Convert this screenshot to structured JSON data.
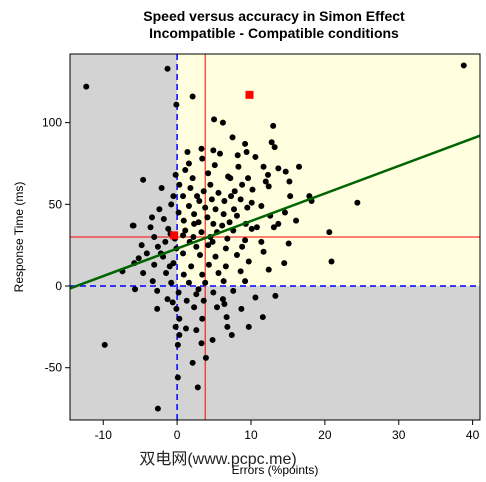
{
  "chart_data": {
    "type": "scatter",
    "title": "Speed versus accuracy in Simon Effect",
    "subtitle": "Incompatible - Compatible conditions",
    "xlabel": "Errors (%points)",
    "ylabel": "Response Time (ms)",
    "xlim": [
      -14.5,
      41
    ],
    "ylim": [
      -82,
      142
    ],
    "x_ticks": [
      -10,
      0,
      10,
      20,
      30,
      40
    ],
    "y_ticks": [
      -50,
      0,
      50,
      100
    ],
    "grid": false,
    "legend": "none",
    "regions": [
      {
        "x": [
          0,
          41
        ],
        "y": [
          0,
          142
        ],
        "fill": "#ffffe0"
      },
      {
        "x": [
          -14.5,
          0
        ],
        "y": [
          -82,
          142
        ],
        "fill": "#d3d3d3"
      },
      {
        "x": [
          0,
          41
        ],
        "y": [
          -82,
          0
        ],
        "fill": "#d3d3d3"
      }
    ],
    "reference_lines": [
      {
        "orientation": "vertical",
        "value": 0,
        "color": "#0000ff",
        "style": "dashed"
      },
      {
        "orientation": "horizontal",
        "value": 0,
        "color": "#0000ff",
        "style": "dashed"
      },
      {
        "orientation": "vertical",
        "value": 3.8,
        "color": "#ff0000",
        "style": "solid"
      },
      {
        "orientation": "horizontal",
        "value": 30,
        "color": "#ff0000",
        "style": "solid"
      }
    ],
    "regression_line": {
      "x": [
        -14.5,
        41
      ],
      "y": [
        -1.5,
        92
      ],
      "color": "#006400"
    },
    "highlight_points": [
      {
        "x": 9.8,
        "y": 117,
        "color": "#ff0000"
      },
      {
        "x": -0.4,
        "y": 31,
        "color": "#ff0000"
      }
    ],
    "points": [
      [
        -12.3,
        122
      ],
      [
        -1.3,
        133
      ],
      [
        38.8,
        135
      ],
      [
        -0.1,
        111
      ],
      [
        2.1,
        116
      ],
      [
        5,
        102
      ],
      [
        6.2,
        100
      ],
      [
        13,
        98
      ],
      [
        7.5,
        91
      ],
      [
        12.8,
        88
      ],
      [
        9.2,
        87
      ],
      [
        13.2,
        85
      ],
      [
        3.3,
        84
      ],
      [
        4.9,
        83
      ],
      [
        5.8,
        81
      ],
      [
        8.2,
        80
      ],
      [
        9.4,
        82
      ],
      [
        10.6,
        79
      ],
      [
        3.4,
        78
      ],
      [
        1.6,
        75
      ],
      [
        5.1,
        74
      ],
      [
        8.3,
        73
      ],
      [
        11.7,
        73
      ],
      [
        13.7,
        72
      ],
      [
        1.1,
        71
      ],
      [
        -4.6,
        65
      ],
      [
        2.1,
        66
      ],
      [
        7.2,
        66
      ],
      [
        9.6,
        66
      ],
      [
        12.3,
        68
      ],
      [
        14.7,
        70
      ],
      [
        16.5,
        73
      ],
      [
        0.3,
        62
      ],
      [
        1.8,
        60
      ],
      [
        3.6,
        58
      ],
      [
        5.6,
        57
      ],
      [
        7.8,
        58
      ],
      [
        10.2,
        59
      ],
      [
        12.4,
        61
      ],
      [
        -0.5,
        55
      ],
      [
        2.7,
        55
      ],
      [
        4.7,
        53
      ],
      [
        6.4,
        52
      ],
      [
        8.6,
        53
      ],
      [
        15.3,
        55
      ],
      [
        17.9,
        55
      ],
      [
        -0.8,
        50
      ],
      [
        1.6,
        49
      ],
      [
        3.8,
        48
      ],
      [
        5.2,
        47
      ],
      [
        7.7,
        47
      ],
      [
        9.5,
        48
      ],
      [
        11.4,
        49
      ],
      [
        24.4,
        51
      ],
      [
        -2.4,
        47
      ],
      [
        0.2,
        45
      ],
      [
        2.3,
        44
      ],
      [
        4.1,
        42
      ],
      [
        6.3,
        44
      ],
      [
        8.1,
        43
      ],
      [
        12.6,
        43
      ],
      [
        14.6,
        45
      ],
      [
        -1.8,
        41
      ],
      [
        0.9,
        40
      ],
      [
        2.9,
        39
      ],
      [
        4.9,
        38
      ],
      [
        7.1,
        39
      ],
      [
        9.3,
        38
      ],
      [
        16.1,
        40
      ],
      [
        -5.9,
        37
      ],
      [
        -3.6,
        36
      ],
      [
        -1.2,
        35
      ],
      [
        1.1,
        34
      ],
      [
        3.3,
        33
      ],
      [
        5.4,
        33
      ],
      [
        7.6,
        34
      ],
      [
        10.1,
        35
      ],
      [
        13.1,
        36
      ],
      [
        -3.1,
        30
      ],
      [
        -0.3,
        29
      ],
      [
        2.2,
        30
      ],
      [
        4.5,
        30
      ],
      [
        6.8,
        29
      ],
      [
        9.2,
        28
      ],
      [
        11.4,
        27
      ],
      [
        20.6,
        33
      ],
      [
        -2.6,
        24
      ],
      [
        -0.1,
        23
      ],
      [
        2.6,
        24
      ],
      [
        4.2,
        25
      ],
      [
        6.6,
        23
      ],
      [
        8.8,
        24
      ],
      [
        15.1,
        26
      ],
      [
        -4.1,
        20
      ],
      [
        -1.9,
        18
      ],
      [
        0.8,
        20
      ],
      [
        3.1,
        19
      ],
      [
        5.2,
        18
      ],
      [
        8.1,
        19
      ],
      [
        11.7,
        21
      ],
      [
        -5.8,
        14
      ],
      [
        -3.1,
        13
      ],
      [
        -0.5,
        14
      ],
      [
        1.9,
        12
      ],
      [
        4.3,
        13
      ],
      [
        6.6,
        12
      ],
      [
        9.7,
        15
      ],
      [
        14.5,
        14
      ],
      [
        20.9,
        15
      ],
      [
        -7.4,
        9
      ],
      [
        -4.6,
        8
      ],
      [
        -1.5,
        8
      ],
      [
        0.9,
        7
      ],
      [
        3.4,
        7
      ],
      [
        5.6,
        8
      ],
      [
        8.6,
        9
      ],
      [
        12.4,
        10
      ],
      [
        -3.3,
        3
      ],
      [
        -0.8,
        2
      ],
      [
        1.6,
        2
      ],
      [
        3.8,
        2
      ],
      [
        6.3,
        3
      ],
      [
        9.2,
        3
      ],
      [
        -5.7,
        -2
      ],
      [
        -2.7,
        -3
      ],
      [
        0.2,
        -4
      ],
      [
        2.6,
        -5
      ],
      [
        4.9,
        -4
      ],
      [
        7.6,
        -3
      ],
      [
        -1.3,
        -8
      ],
      [
        1.3,
        -9
      ],
      [
        3.6,
        -9
      ],
      [
        6.2,
        -8
      ],
      [
        10.6,
        -7
      ],
      [
        13.3,
        -6
      ],
      [
        -2.7,
        -14
      ],
      [
        -0.1,
        -14
      ],
      [
        2.3,
        -13
      ],
      [
        5.4,
        -13
      ],
      [
        8.7,
        -14
      ],
      [
        0.3,
        -20
      ],
      [
        3.4,
        -20
      ],
      [
        6.7,
        -19
      ],
      [
        11.6,
        -19
      ],
      [
        -0.2,
        -25
      ],
      [
        2.6,
        -27
      ],
      [
        6.8,
        -25
      ],
      [
        9.7,
        -25
      ],
      [
        4.8,
        -33
      ],
      [
        0.1,
        -36
      ],
      [
        7.4,
        -30
      ],
      [
        -9.8,
        -36
      ],
      [
        3.9,
        -44
      ],
      [
        2.1,
        -47
      ],
      [
        0.1,
        -56
      ],
      [
        2.8,
        -62
      ],
      [
        -2.6,
        -75
      ],
      [
        1.2,
        -26
      ],
      [
        -1,
        12
      ],
      [
        -6,
        37
      ],
      [
        -3.4,
        42
      ],
      [
        0.8,
        55
      ],
      [
        4.2,
        69
      ],
      [
        6.9,
        67
      ],
      [
        2.9,
        -2
      ],
      [
        -0.6,
        -10
      ],
      [
        1.7,
        27
      ],
      [
        4.8,
        27
      ],
      [
        -2.1,
        60
      ],
      [
        3,
        52
      ],
      [
        7.3,
        55
      ],
      [
        10.1,
        51
      ],
      [
        -1.6,
        27
      ],
      [
        4.5,
        62
      ],
      [
        1.4,
        82
      ],
      [
        -0.2,
        68
      ],
      [
        8.8,
        62
      ],
      [
        12,
        64
      ],
      [
        15.2,
        64
      ],
      [
        6.1,
        37
      ],
      [
        13.7,
        38
      ],
      [
        -2.2,
        20
      ],
      [
        -4.8,
        25
      ],
      [
        0.3,
        -30
      ],
      [
        3.3,
        -35
      ],
      [
        0.8,
        31
      ],
      [
        6.4,
        -11
      ],
      [
        2.3,
        38
      ],
      [
        -0.9,
        32
      ],
      [
        10.8,
        36
      ],
      [
        18.2,
        52
      ],
      [
        -5.2,
        17
      ]
    ]
  },
  "watermark": "双电网(www.pcpc.me)"
}
